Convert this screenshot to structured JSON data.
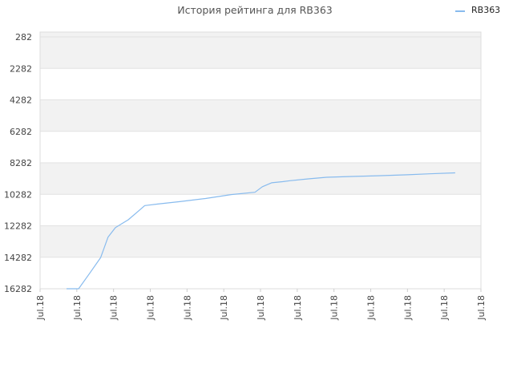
{
  "chart_data": {
    "type": "line",
    "title": "История рейтинга для RB363",
    "xlabel": "",
    "ylabel": "",
    "y_inverted": true,
    "ylim": [
      282,
      16282
    ],
    "y_ticks": [
      "282",
      "2282",
      "4282",
      "6282",
      "8282",
      "10282",
      "12282",
      "14282",
      "16282"
    ],
    "y_tick_values": [
      282,
      2282,
      4282,
      6282,
      8282,
      10282,
      12282,
      14282,
      16282
    ],
    "x_ticks": [
      "Jul.18",
      "Jul.18",
      "Jul.18",
      "Jul.18",
      "Jul.18",
      "Jul.18",
      "Jul.18",
      "Jul.18",
      "Jul.18",
      "Jul.18",
      "Jul.18",
      "Jul.18",
      "Jul.18"
    ],
    "xlim": [
      0,
      12
    ],
    "grid": true,
    "legend_position": "top-right",
    "series": [
      {
        "name": "RB363",
        "color": "#88bbee",
        "x": [
          0.72,
          1.05,
          1.35,
          1.65,
          1.85,
          2.05,
          2.4,
          2.65,
          2.85,
          3.2,
          3.8,
          4.5,
          5.2,
          5.85,
          6.05,
          6.3,
          6.6,
          6.8,
          7.3,
          7.8,
          8.5,
          9.2,
          10.0,
          10.6,
          11.3
        ],
        "y": [
          16282,
          16282,
          15300,
          14300,
          13000,
          12400,
          11900,
          11400,
          11000,
          10900,
          10750,
          10550,
          10300,
          10150,
          9800,
          9550,
          9480,
          9420,
          9300,
          9200,
          9150,
          9100,
          9040,
          8980,
          8920
        ]
      }
    ]
  }
}
